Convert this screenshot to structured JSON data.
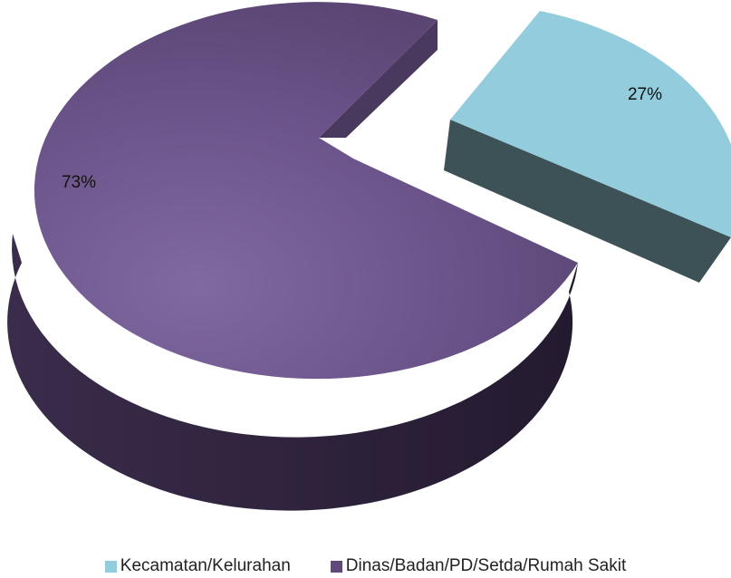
{
  "chart_data": {
    "type": "pie",
    "style": "3d-exploded",
    "slices": [
      {
        "name": "Kecamatan/Kelurahan",
        "value": 27,
        "label": "27%",
        "color": "#93cddd",
        "side_color": "#3c5257",
        "exploded": true
      },
      {
        "name": "Dinas/Badan/PD/Setda/Rumah Sakit",
        "value": 73,
        "label": "73%",
        "color": "#604a7b",
        "side_color": "#2e2239",
        "exploded": false
      }
    ],
    "legend_position": "bottom"
  }
}
